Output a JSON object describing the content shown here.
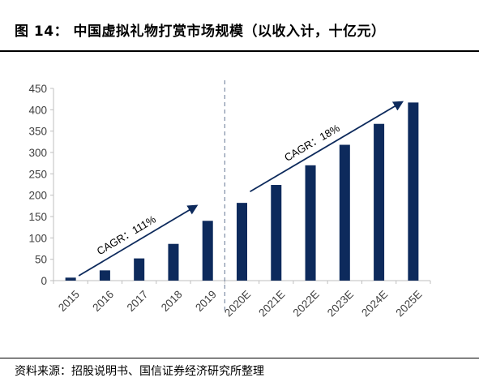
{
  "title": "图 14： 中国虚拟礼物打赏市场规模（以收入计，十亿元）",
  "source": "资料来源：招股说明书、国信证券经济研究所整理",
  "colors": {
    "bar": "#0d2a5c",
    "axis": "#bfbfbf",
    "divider": "#7f8ea6",
    "text": "#404040"
  },
  "chart_data": {
    "type": "bar",
    "categories": [
      "2015",
      "2016",
      "2017",
      "2018",
      "2019",
      "2020E",
      "2021E",
      "2022E",
      "2023E",
      "2024E",
      "2025E"
    ],
    "values": [
      7,
      24,
      52,
      86,
      140,
      182,
      224,
      270,
      318,
      367,
      417
    ],
    "ylim": [
      0,
      450
    ],
    "yticks": [
      0,
      50,
      100,
      150,
      200,
      250,
      300,
      350,
      400,
      450
    ],
    "grid": false,
    "divider_between": [
      "2019",
      "2020E"
    ],
    "annotations": [
      {
        "text": "CAGR：111%",
        "from_category": "2015",
        "to_category": "2019",
        "from_value": 0,
        "to_value": 175
      },
      {
        "text": "CAGR：18%",
        "from_category": "2020E",
        "to_category": "2025E",
        "from_value": 197,
        "to_value": 418
      }
    ]
  }
}
